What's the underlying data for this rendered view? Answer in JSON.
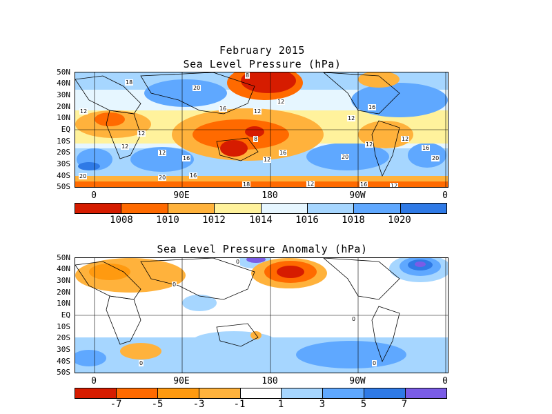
{
  "top": {
    "title": "February 2015",
    "subtitle": "Sea Level Pressure (hPa)",
    "lat_labels": [
      "50N",
      "40N",
      "30N",
      "20N",
      "10N",
      "EQ",
      "10S",
      "20S",
      "30S",
      "40S",
      "50S"
    ],
    "lon_labels": [
      "0",
      "90E",
      "180",
      "90W",
      "0"
    ],
    "colorbar_labels": [
      "1008",
      "1010",
      "1012",
      "1014",
      "1016",
      "1018",
      "1020"
    ],
    "colorbar_colors": [
      "#d61c00",
      "#ff6a00",
      "#ffb23c",
      "#fff29c",
      "#e6f6ff",
      "#a6d6ff",
      "#5fa8ff",
      "#2f7ae6"
    ],
    "contour_labels": [
      "18",
      "20",
      "12",
      "16",
      "12",
      "12",
      "16",
      "12",
      "16",
      "12",
      "12",
      "16",
      "20",
      "20",
      "16",
      "12",
      "12",
      "20",
      "16",
      "20",
      "16",
      "12",
      "18",
      "12",
      "8",
      "8",
      "12",
      "12"
    ]
  },
  "bottom": {
    "title": "Sea Level Pressure Anomaly (hPa)",
    "lat_labels": [
      "50N",
      "40N",
      "30N",
      "20N",
      "10N",
      "EQ",
      "10S",
      "20S",
      "30S",
      "40S",
      "50S"
    ],
    "lon_labels": [
      "0",
      "90E",
      "180",
      "90W",
      "0"
    ],
    "colorbar_labels": [
      "-7",
      "-5",
      "-3",
      "-1",
      "1",
      "3",
      "5",
      "7"
    ],
    "colorbar_colors": [
      "#d61c00",
      "#ff6a00",
      "#ff9a10",
      "#ffb23c",
      "#ffffff",
      "#a6d6ff",
      "#5fa8ff",
      "#2f7ae6",
      "#7a5ce6"
    ],
    "contour_labels": [
      "0",
      "0",
      "0",
      "0",
      "0"
    ]
  }
}
